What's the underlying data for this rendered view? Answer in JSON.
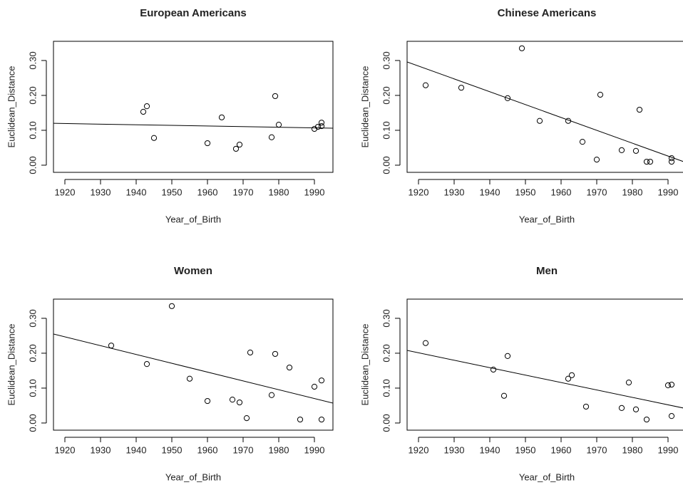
{
  "chart_data": [
    {
      "type": "scatter",
      "title": "European Americans",
      "x_label": "Year_of_Birth",
      "y_label": "Euclidean_Distance",
      "xlim": [
        1916.8,
        1995.2
      ],
      "ylim": [
        -0.0205,
        0.355
      ],
      "xticks": [
        1920,
        1930,
        1940,
        1950,
        1960,
        1970,
        1980,
        1990
      ],
      "yticks": [
        {
          "value": 0,
          "label": "0.00"
        },
        {
          "value": 0.1,
          "label": "0.10"
        },
        {
          "value": 0.2,
          "label": "0.20"
        },
        {
          "value": 0.3,
          "label": "0.30"
        }
      ],
      "x": [
        1942,
        1943,
        1945,
        1960,
        1964,
        1968,
        1969,
        1978,
        1979,
        1980,
        1990,
        1991,
        1992,
        1992
      ],
      "values": [
        0.153,
        0.169,
        0.078,
        0.063,
        0.137,
        0.047,
        0.059,
        0.08,
        0.198,
        0.116,
        0.104,
        0.11,
        0.112,
        0.122
      ],
      "trend": {
        "x": [
          1916.8,
          1995.2
        ],
        "y": [
          0.12,
          0.106
        ]
      }
    },
    {
      "type": "scatter",
      "title": "Chinese Americans",
      "x_label": "Year_of_Birth",
      "y_label": "Euclidean_Distance",
      "xlim": [
        1916.8,
        1995.2
      ],
      "ylim": [
        -0.0205,
        0.355
      ],
      "xticks": [
        1920,
        1930,
        1940,
        1950,
        1960,
        1970,
        1980,
        1990
      ],
      "yticks": [
        {
          "value": 0,
          "label": "0.00"
        },
        {
          "value": 0.1,
          "label": "0.10"
        },
        {
          "value": 0.2,
          "label": "0.20"
        },
        {
          "value": 0.3,
          "label": "0.30"
        }
      ],
      "x": [
        1922,
        1932,
        1945,
        1949,
        1954,
        1962,
        1966,
        1970,
        1971,
        1977,
        1981,
        1982,
        1984,
        1985,
        1991,
        1991
      ],
      "values": [
        0.229,
        0.222,
        0.192,
        0.335,
        0.127,
        0.127,
        0.067,
        0.016,
        0.202,
        0.043,
        0.041,
        0.159,
        0.01,
        0.01,
        0.02,
        0.01
      ],
      "trend": {
        "x": [
          1916.8,
          1995.2
        ],
        "y": [
          0.296,
          0.007
        ]
      }
    },
    {
      "type": "scatter",
      "title": "Women",
      "x_label": "Year_of_Birth",
      "y_label": "Euclidean_Distance",
      "xlim": [
        1916.8,
        1995.2
      ],
      "ylim": [
        -0.0205,
        0.355
      ],
      "xticks": [
        1920,
        1930,
        1940,
        1950,
        1960,
        1970,
        1980,
        1990
      ],
      "yticks": [
        {
          "value": 0,
          "label": "0.00"
        },
        {
          "value": 0.1,
          "label": "0.10"
        },
        {
          "value": 0.2,
          "label": "0.20"
        },
        {
          "value": 0.3,
          "label": "0.30"
        }
      ],
      "x": [
        1933,
        1943,
        1950,
        1955,
        1960,
        1967,
        1969,
        1971,
        1972,
        1978,
        1979,
        1983,
        1986,
        1990,
        1992,
        1992
      ],
      "values": [
        0.222,
        0.169,
        0.335,
        0.127,
        0.063,
        0.067,
        0.059,
        0.014,
        0.202,
        0.08,
        0.198,
        0.159,
        0.01,
        0.104,
        0.122,
        0.01
      ],
      "trend": {
        "x": [
          1916.8,
          1995.2
        ],
        "y": [
          0.255,
          0.057
        ]
      }
    },
    {
      "type": "scatter",
      "title": "Men",
      "x_label": "Year_of_Birth",
      "y_label": "Euclidean_Distance",
      "xlim": [
        1916.8,
        1995.2
      ],
      "ylim": [
        -0.0205,
        0.355
      ],
      "xticks": [
        1920,
        1930,
        1940,
        1950,
        1960,
        1970,
        1980,
        1990
      ],
      "yticks": [
        {
          "value": 0,
          "label": "0.00"
        },
        {
          "value": 0.1,
          "label": "0.10"
        },
        {
          "value": 0.2,
          "label": "0.20"
        },
        {
          "value": 0.3,
          "label": "0.30"
        }
      ],
      "x": [
        1922,
        1941,
        1944,
        1945,
        1962,
        1963,
        1967,
        1977,
        1979,
        1981,
        1984,
        1990,
        1991,
        1991
      ],
      "values": [
        0.229,
        0.153,
        0.078,
        0.192,
        0.127,
        0.137,
        0.047,
        0.043,
        0.116,
        0.039,
        0.01,
        0.108,
        0.11,
        0.02
      ],
      "trend": {
        "x": [
          1916.8,
          1995.2
        ],
        "y": [
          0.208,
          0.041
        ]
      }
    }
  ]
}
